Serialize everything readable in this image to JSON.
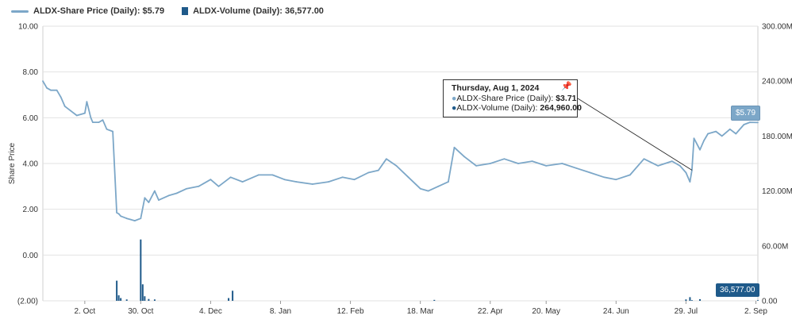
{
  "legend": {
    "price_label": "ALDX-Share Price (Daily): $5.79",
    "volume_label": "ALDX-Volume (Daily): 36,577.00"
  },
  "colors": {
    "price": "#7ca7c8",
    "volume": "#1f5a8a",
    "grid": "#e2e2e2"
  },
  "tooltip": {
    "title": "Thursday, Aug 1, 2024",
    "price_label": "ALDX-Share Price (Daily):",
    "price_value": "$3.71",
    "volume_label": "ALDX-Volume (Daily):",
    "volume_value": "264,960.00",
    "pin_icon": "pin-icon"
  },
  "badges": {
    "price": "$5.79",
    "volume": "36,577.00"
  },
  "chart_data": {
    "type": "line",
    "ylabel": "Share Price",
    "y_left_ticks": [
      "10.00",
      "8.00",
      "6.00",
      "4.00",
      "2.00",
      "0.00",
      "(2.00)"
    ],
    "y_left_range": [
      -2,
      10
    ],
    "y_right_ticks": [
      "300.00M",
      "240.00M",
      "180.00M",
      "120.00M",
      "60.00M",
      "0.00"
    ],
    "y_right_range": [
      0,
      300000000
    ],
    "x_ticks": [
      "2. Oct",
      "30. Oct",
      "4. Dec",
      "8. Jan",
      "12. Feb",
      "18. Mar",
      "22. Apr",
      "20. May",
      "24. Jun",
      "29. Jul",
      "2. Sep"
    ],
    "x_range": [
      "2023-09-11",
      "2024-09-03"
    ],
    "x_tick_dates": [
      "2023-10-02",
      "2023-10-30",
      "2023-12-04",
      "2024-01-08",
      "2024-02-12",
      "2024-03-18",
      "2024-04-22",
      "2024-05-20",
      "2024-06-24",
      "2024-07-29",
      "2024-09-02"
    ],
    "grid": true,
    "series": [
      {
        "name": "ALDX-Share Price (Daily)",
        "axis": "left",
        "x": [
          "2023-09-11",
          "2023-09-13",
          "2023-09-15",
          "2023-09-18",
          "2023-09-20",
          "2023-09-22",
          "2023-09-25",
          "2023-09-28",
          "2023-10-02",
          "2023-10-03",
          "2023-10-05",
          "2023-10-06",
          "2023-10-09",
          "2023-10-11",
          "2023-10-13",
          "2023-10-16",
          "2023-10-18",
          "2023-10-19",
          "2023-10-20",
          "2023-10-23",
          "2023-10-25",
          "2023-10-27",
          "2023-10-30",
          "2023-11-01",
          "2023-11-03",
          "2023-11-06",
          "2023-11-08",
          "2023-11-13",
          "2023-11-17",
          "2023-11-22",
          "2023-11-28",
          "2023-12-04",
          "2023-12-08",
          "2023-12-14",
          "2023-12-20",
          "2023-12-28",
          "2024-01-04",
          "2024-01-10",
          "2024-01-16",
          "2024-01-24",
          "2024-02-01",
          "2024-02-08",
          "2024-02-14",
          "2024-02-21",
          "2024-02-26",
          "2024-03-01",
          "2024-03-06",
          "2024-03-12",
          "2024-03-18",
          "2024-03-22",
          "2024-03-27",
          "2024-04-01",
          "2024-04-04",
          "2024-04-09",
          "2024-04-15",
          "2024-04-22",
          "2024-04-29",
          "2024-05-06",
          "2024-05-13",
          "2024-05-20",
          "2024-05-28",
          "2024-06-04",
          "2024-06-11",
          "2024-06-18",
          "2024-06-24",
          "2024-07-01",
          "2024-07-08",
          "2024-07-15",
          "2024-07-22",
          "2024-07-26",
          "2024-07-29",
          "2024-07-31",
          "2024-08-01",
          "2024-08-02",
          "2024-08-05",
          "2024-08-07",
          "2024-08-09",
          "2024-08-13",
          "2024-08-16",
          "2024-08-20",
          "2024-08-23",
          "2024-08-27",
          "2024-08-30",
          "2024-09-03"
        ],
        "values": [
          7.6,
          7.3,
          7.2,
          7.2,
          6.9,
          6.5,
          6.3,
          6.1,
          6.2,
          6.7,
          6.0,
          5.8,
          5.8,
          5.9,
          5.5,
          5.4,
          1.85,
          1.8,
          1.7,
          1.6,
          1.55,
          1.5,
          1.6,
          2.5,
          2.3,
          2.8,
          2.4,
          2.6,
          2.7,
          2.9,
          3.0,
          3.3,
          3.0,
          3.4,
          3.2,
          3.5,
          3.5,
          3.3,
          3.2,
          3.1,
          3.2,
          3.4,
          3.3,
          3.6,
          3.7,
          4.2,
          3.9,
          3.4,
          2.9,
          2.8,
          3.0,
          3.2,
          4.7,
          4.3,
          3.9,
          4.0,
          4.2,
          4.0,
          4.1,
          3.9,
          4.0,
          3.8,
          3.6,
          3.4,
          3.3,
          3.5,
          4.2,
          3.9,
          4.1,
          3.9,
          3.6,
          3.2,
          3.71,
          5.1,
          4.6,
          5.0,
          5.3,
          5.4,
          5.2,
          5.5,
          5.3,
          5.7,
          5.8,
          5.79
        ]
      },
      {
        "name": "ALDX-Volume (Daily)",
        "axis": "right",
        "x": [
          "2023-10-18",
          "2023-10-19",
          "2023-10-20",
          "2023-10-23",
          "2023-10-30",
          "2023-10-31",
          "2023-11-01",
          "2023-11-03",
          "2023-11-06",
          "2023-12-13",
          "2023-12-15",
          "2024-03-25",
          "2024-07-29",
          "2024-07-31",
          "2024-08-01",
          "2024-08-05",
          "2024-09-03"
        ],
        "values": [
          22000000,
          6000000,
          3000000,
          1500000,
          67000000,
          18000000,
          5000000,
          2000000,
          1500000,
          3000000,
          11000000,
          1000000,
          1500000,
          4000000,
          264960,
          1800000,
          36577
        ]
      }
    ]
  }
}
